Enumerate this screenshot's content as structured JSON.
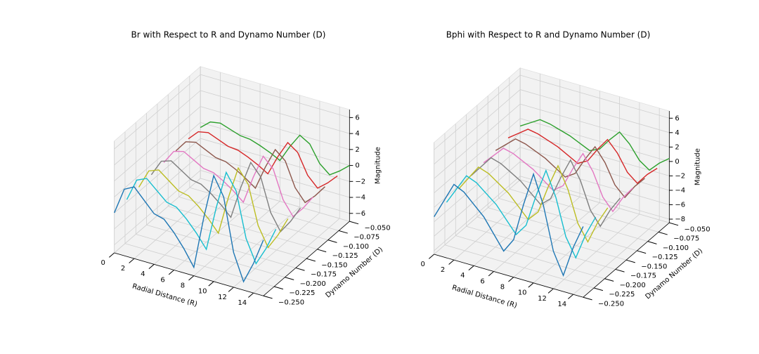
{
  "chart_data": [
    {
      "type": "line3d",
      "title": "Br with Respect to R and Dynamo Number (D)",
      "xlabel": "Radial Distance (R)",
      "ylabel": "Dynamo Number (D)",
      "zlabel": "Magnitude",
      "xlim": [
        0,
        15
      ],
      "ylim": [
        -0.25,
        -0.05
      ],
      "zlim": [
        -7,
        7
      ],
      "xticks": [
        0,
        2,
        4,
        6,
        8,
        10,
        12,
        14
      ],
      "yticks": [
        {
          "value": -0.25,
          "label": "−0.250"
        },
        {
          "value": -0.225,
          "label": "−0.225"
        },
        {
          "value": -0.2,
          "label": "−0.200"
        },
        {
          "value": -0.175,
          "label": "−0.175"
        },
        {
          "value": -0.15,
          "label": "−0.150"
        },
        {
          "value": -0.125,
          "label": "−0.125"
        },
        {
          "value": -0.1,
          "label": "−0.100"
        },
        {
          "value": -0.075,
          "label": "−0.075"
        },
        {
          "value": -0.05,
          "label": "−0.050"
        }
      ],
      "zticks": [
        {
          "value": -6,
          "label": "−6"
        },
        {
          "value": -4,
          "label": "−4"
        },
        {
          "value": -2,
          "label": "−2"
        },
        0,
        2,
        4,
        6
      ],
      "x": [
        0,
        1,
        2,
        3,
        4,
        5,
        6,
        7,
        8,
        9,
        10,
        11,
        12,
        13,
        14,
        15
      ],
      "series": [
        {
          "d": -0.25,
          "color": "#1f77b4",
          "values": [
            -1.98,
            1.32,
            1.98,
            0.66,
            -0.66,
            -0.99,
            -2.31,
            -3.96,
            -5.94,
            0.66,
            6.27,
            3.96,
            -2.64,
            -5.94,
            -3.3,
            0
          ]
        },
        {
          "d": -0.221,
          "color": "#17becf",
          "values": [
            -1.68,
            1.12,
            1.68,
            0.56,
            -0.56,
            -0.84,
            -1.96,
            -3.36,
            -5.04,
            0.56,
            5.32,
            3.36,
            -2.24,
            -5.04,
            -2.8,
            0
          ]
        },
        {
          "d": -0.193,
          "color": "#bcbd22",
          "values": [
            -1.44,
            0.96,
            1.44,
            0.48,
            -0.48,
            -0.72,
            -1.68,
            -2.88,
            -4.32,
            0.48,
            4.56,
            2.88,
            -1.92,
            -4.32,
            -2.4,
            0
          ]
        },
        {
          "d": -0.164,
          "color": "#7f7f7f",
          "values": [
            -1.23,
            0.82,
            1.23,
            0.41,
            -0.41,
            -0.62,
            -1.44,
            -2.46,
            -3.69,
            0.41,
            3.9,
            2.46,
            -1.64,
            -3.69,
            -2.05,
            0
          ]
        },
        {
          "d": -0.135,
          "color": "#e377c2",
          "values": [
            -1.05,
            0.7,
            1.05,
            0.35,
            -0.35,
            -0.53,
            -1.23,
            -2.1,
            -3.15,
            0.35,
            3.33,
            2.1,
            -1.4,
            -3.15,
            -1.75,
            0
          ]
        },
        {
          "d": -0.107,
          "color": "#8c564b",
          "values": [
            -0.9,
            0.6,
            0.9,
            0.3,
            -0.3,
            -0.45,
            -1.05,
            -1.8,
            -2.7,
            0.3,
            2.85,
            1.8,
            -1.2,
            -2.7,
            -1.5,
            0
          ]
        },
        {
          "d": -0.078,
          "color": "#d62728",
          "values": [
            -0.75,
            0.5,
            0.75,
            0.25,
            -0.25,
            -0.38,
            -0.88,
            -1.5,
            -2.25,
            0.25,
            2.38,
            1.5,
            -1,
            -2.25,
            -1.25,
            0
          ]
        },
        {
          "d": -0.05,
          "color": "#2ca02c",
          "values": [
            -0.63,
            0.42,
            0.63,
            0.21,
            -0.21,
            -0.32,
            -0.74,
            -1.26,
            -1.89,
            0.21,
            2,
            1.26,
            -0.84,
            -1.89,
            -1.05,
            0
          ]
        }
      ]
    },
    {
      "type": "line3d",
      "title": "Bphi with Respect to R and Dynamo Number (D)",
      "xlabel": "Radial Distance (R)",
      "ylabel": "Dynamo Number (D)",
      "zlabel": "Magnitude",
      "xlim": [
        0,
        15
      ],
      "ylim": [
        -0.25,
        -0.05
      ],
      "zlim": [
        -8.5,
        7
      ],
      "xticks": [
        0,
        2,
        4,
        6,
        8,
        10,
        12,
        14
      ],
      "yticks": [
        {
          "value": -0.25,
          "label": "−0.250"
        },
        {
          "value": -0.225,
          "label": "−0.225"
        },
        {
          "value": -0.2,
          "label": "−0.200"
        },
        {
          "value": -0.175,
          "label": "−0.175"
        },
        {
          "value": -0.15,
          "label": "−0.150"
        },
        {
          "value": -0.125,
          "label": "−0.125"
        },
        {
          "value": -0.1,
          "label": "−0.100"
        },
        {
          "value": -0.075,
          "label": "−0.075"
        },
        {
          "value": -0.05,
          "label": "−0.050"
        }
      ],
      "zticks": [
        {
          "value": -8,
          "label": "−8"
        },
        {
          "value": -6,
          "label": "−6"
        },
        {
          "value": -4,
          "label": "−4"
        },
        {
          "value": -2,
          "label": "−2"
        },
        0,
        2,
        4,
        6
      ],
      "x": [
        0,
        1,
        2,
        3,
        4,
        5,
        6,
        7,
        8,
        9,
        10,
        11,
        12,
        13,
        14,
        15
      ],
      "series": [
        {
          "d": -0.25,
          "color": "#1f77b4",
          "values": [
            -3.3,
            -0.66,
            1.98,
            1.32,
            0,
            -1.32,
            -3.3,
            -5.28,
            -3.3,
            1.98,
            6.6,
            2.64,
            -3.3,
            -6.27,
            -1.98,
            1.32
          ]
        },
        {
          "d": -0.221,
          "color": "#17becf",
          "values": [
            -2.8,
            -0.56,
            1.68,
            1.12,
            0,
            -1.12,
            -2.8,
            -4.48,
            -2.8,
            1.68,
            5.6,
            2.24,
            -2.8,
            -5.32,
            -1.68,
            1.12
          ]
        },
        {
          "d": -0.193,
          "color": "#bcbd22",
          "values": [
            -2.4,
            -0.48,
            1.44,
            0.96,
            0,
            -0.96,
            -2.4,
            -3.84,
            -2.4,
            1.44,
            4.8,
            1.92,
            -2.4,
            -4.56,
            -1.44,
            0.96
          ]
        },
        {
          "d": -0.164,
          "color": "#7f7f7f",
          "values": [
            -2.05,
            -0.41,
            1.23,
            0.82,
            0,
            -0.82,
            -2.05,
            -3.28,
            -2.05,
            1.23,
            4.1,
            1.64,
            -2.05,
            -3.9,
            -1.23,
            0.82
          ]
        },
        {
          "d": -0.135,
          "color": "#e377c2",
          "values": [
            -1.75,
            -0.35,
            1.05,
            0.7,
            0,
            -0.7,
            -1.75,
            -2.8,
            -1.75,
            1.05,
            3.5,
            1.4,
            -1.75,
            -3.33,
            -1.05,
            0.7
          ]
        },
        {
          "d": -0.107,
          "color": "#8c564b",
          "values": [
            -1.5,
            -0.3,
            0.9,
            0.6,
            0,
            -0.6,
            -1.5,
            -2.4,
            -1.5,
            0.9,
            3,
            1.2,
            -1.5,
            -2.85,
            -0.9,
            0.6
          ]
        },
        {
          "d": -0.078,
          "color": "#d62728",
          "values": [
            -1.25,
            -0.25,
            0.75,
            0.5,
            0,
            -0.5,
            -1.25,
            -2,
            -1.25,
            0.75,
            2.5,
            1,
            -1.25,
            -2.38,
            -0.75,
            0.5
          ]
        },
        {
          "d": -0.05,
          "color": "#2ca02c",
          "values": [
            -1.05,
            -0.21,
            0.63,
            0.42,
            0,
            -0.42,
            -1.05,
            -1.68,
            -1.05,
            0.63,
            2.1,
            0.84,
            -1.05,
            -2,
            -0.63,
            0.42
          ]
        }
      ]
    }
  ]
}
